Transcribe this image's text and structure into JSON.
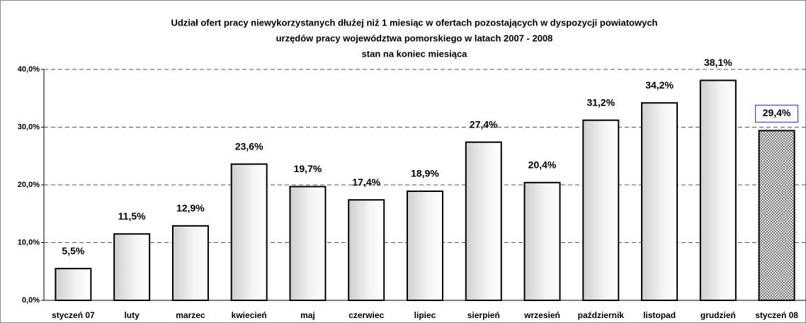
{
  "chart_data": {
    "type": "bar",
    "title": [
      "Udział ofert pracy  niewykorzystanych dłużej niż 1 miesiąc w  ofertach pozostających w dyspozycji powiatowych",
      "urzędów pracy  województwa pomorskiego w  latach 2007 - 2008",
      "stan na koniec miesiąca"
    ],
    "categories": [
      "styczeń 07",
      "luty",
      "marzec",
      "kwiecień",
      "maj",
      "czerwiec",
      "lipiec",
      "sierpień",
      "wrzesień",
      "październik",
      "listopad",
      "grudzień",
      "styczeń 08"
    ],
    "values": [
      5.5,
      11.5,
      12.9,
      23.6,
      19.7,
      17.4,
      18.9,
      27.4,
      20.4,
      31.2,
      34.2,
      38.1,
      29.4
    ],
    "value_labels": [
      "5,5%",
      "11,5%",
      "12,9%",
      "23,6%",
      "19,7%",
      "17,4%",
      "18,9%",
      "27,4%",
      "20,4%",
      "31,2%",
      "34,2%",
      "38,1%",
      "29,4%"
    ],
    "color": "#e0e0e0",
    "highlight_index": 12,
    "highlight_color": "#8a8a8a",
    "ylim": [
      0,
      40
    ],
    "yticks": [
      {
        "value": 0,
        "label": "0,0%"
      },
      {
        "value": 10,
        "label": "10,0%"
      },
      {
        "value": 20,
        "label": "20,0%"
      },
      {
        "value": 30,
        "label": "30,0%"
      },
      {
        "value": 40,
        "label": "40,0%"
      }
    ],
    "grid": true
  }
}
